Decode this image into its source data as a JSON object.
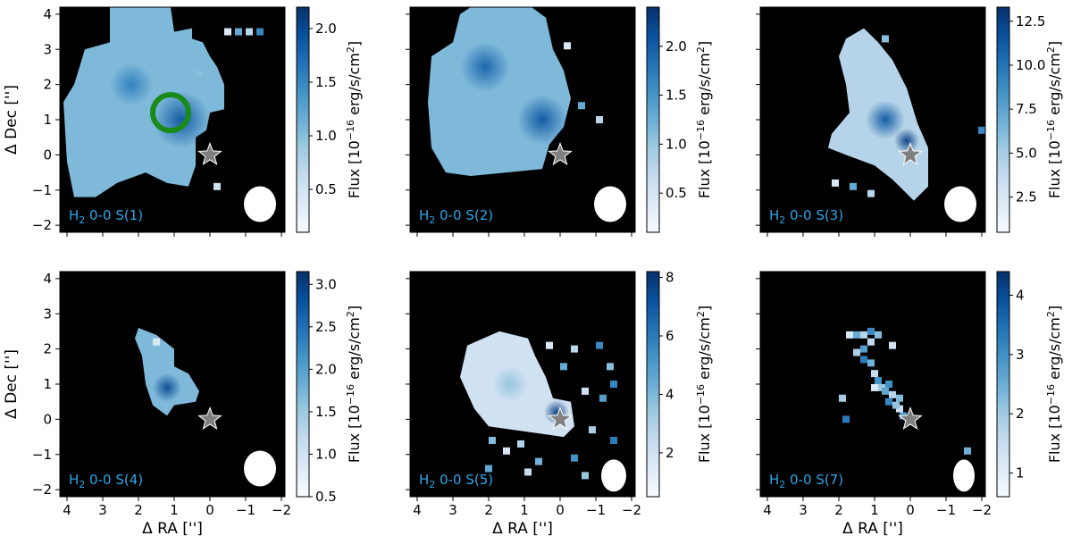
{
  "figure": {
    "colormap": [
      "#f7fbff",
      "#deebf7",
      "#c6dbef",
      "#9ecae1",
      "#6baed6",
      "#4292c6",
      "#2171b5",
      "#08519c",
      "#08306b"
    ],
    "background_color": "#000000",
    "star_color": "#808080",
    "beam_color": "#ffffff",
    "ring_color": "#1a8a1a",
    "label_color": "#2aa7e8",
    "x_axis_label": "Δ RA ['']",
    "y_axis_label": "Δ Dec ['']",
    "x_ticks": [
      4,
      3,
      2,
      1,
      0,
      -1,
      -2
    ],
    "y_ticks": [
      -2,
      -1,
      0,
      1,
      2,
      3,
      4
    ],
    "cbar_label_prefix": "Flux [10",
    "cbar_label_exponent": "−16",
    "cbar_label_middle": " erg/s/cm",
    "cbar_label_square": "2",
    "cbar_label_suffix": "]"
  },
  "chart_data": [
    {
      "type": "heatmap",
      "label_species": "H",
      "label_subscript": "2",
      "label_transition": " 0-0 S(1)",
      "xlabel": "",
      "ylabel": "Δ Dec ['']",
      "xlim": [
        4.2,
        -2.1
      ],
      "ylim": [
        -2.2,
        4.2
      ],
      "show_x_tick_labels": false,
      "show_y_tick_labels": true,
      "colorbar": {
        "min": 0.1,
        "max": 2.2,
        "ticks": [
          0.5,
          1.0,
          1.5,
          2.0
        ],
        "tick_labels": [
          "0.5",
          "1.0",
          "1.5",
          "2.0"
        ]
      },
      "star": [
        0,
        0
      ],
      "beam": {
        "center": [
          -1.4,
          -1.4
        ],
        "size": [
          0.9,
          1.0
        ]
      },
      "ring": {
        "center": [
          1.1,
          1.2
        ],
        "radius": 0.5
      },
      "emission_regions": [
        {
          "outline": [
            [
              2.8,
              4.2
            ],
            [
              1.1,
              4.2
            ],
            [
              1.0,
              3.5
            ],
            [
              0.5,
              3.6
            ],
            [
              0.5,
              3.3
            ],
            [
              0.2,
              3.2
            ],
            [
              0.0,
              2.8
            ],
            [
              -0.2,
              2.5
            ],
            [
              -0.4,
              2.0
            ],
            [
              -0.4,
              1.3
            ],
            [
              0.0,
              1.2
            ],
            [
              0.1,
              0.7
            ],
            [
              0.4,
              0.5
            ],
            [
              0.4,
              -0.3
            ],
            [
              0.6,
              -0.9
            ],
            [
              1.2,
              -0.8
            ],
            [
              1.8,
              -0.5
            ],
            [
              2.6,
              -0.8
            ],
            [
              3.2,
              -1.2
            ],
            [
              3.8,
              -1.2
            ],
            [
              4.0,
              -0.2
            ],
            [
              4.1,
              1.5
            ],
            [
              3.8,
              2.0
            ],
            [
              3.5,
              3.0
            ],
            [
              2.8,
              3.2
            ]
          ],
          "level": 0.45
        }
      ],
      "bright_spots": [
        {
          "center": [
            0.8,
            1.0
          ],
          "radius": 0.8,
          "level": 0.85
        },
        {
          "center": [
            2.2,
            2.0
          ],
          "radius": 0.6,
          "level": 0.7
        }
      ],
      "emission_pixels": [
        [
          -0.5,
          3.5
        ],
        [
          -0.8,
          3.5
        ],
        [
          -1.1,
          3.5
        ],
        [
          -1.4,
          3.5
        ],
        [
          0.3,
          2.3
        ],
        [
          -0.2,
          -0.9
        ]
      ]
    },
    {
      "type": "heatmap",
      "label_species": "H",
      "label_subscript": "2",
      "label_transition": " 0-0 S(2)",
      "xlabel": "",
      "ylabel": "",
      "xlim": [
        4.2,
        -2.1
      ],
      "ylim": [
        -2.2,
        4.2
      ],
      "show_x_tick_labels": false,
      "show_y_tick_labels": false,
      "colorbar": {
        "min": 0.1,
        "max": 2.4,
        "ticks": [
          0.5,
          1.0,
          1.5,
          2.0
        ],
        "tick_labels": [
          "0.5",
          "1.0",
          "1.5",
          "2.0"
        ]
      },
      "star": [
        0,
        0
      ],
      "beam": {
        "center": [
          -1.4,
          -1.4
        ],
        "size": [
          0.9,
          1.0
        ]
      },
      "emission_regions": [
        {
          "outline": [
            [
              2.5,
              4.2
            ],
            [
              0.8,
              4.2
            ],
            [
              0.4,
              3.9
            ],
            [
              0.2,
              3.0
            ],
            [
              -0.1,
              2.4
            ],
            [
              -0.3,
              1.6
            ],
            [
              -0.1,
              0.8
            ],
            [
              0.3,
              0.3
            ],
            [
              0.5,
              -0.4
            ],
            [
              1.5,
              -0.5
            ],
            [
              2.5,
              -0.6
            ],
            [
              3.2,
              -0.5
            ],
            [
              3.6,
              0.2
            ],
            [
              3.7,
              1.5
            ],
            [
              3.6,
              2.8
            ],
            [
              3.0,
              3.2
            ],
            [
              2.8,
              4.0
            ]
          ],
          "level": 0.45
        }
      ],
      "bright_spots": [
        {
          "center": [
            2.1,
            2.5
          ],
          "radius": 0.7,
          "level": 0.8
        },
        {
          "center": [
            0.5,
            1.0
          ],
          "radius": 0.7,
          "level": 0.85
        }
      ],
      "emission_pixels": [
        [
          -0.2,
          3.1
        ],
        [
          -0.6,
          1.4
        ],
        [
          -1.1,
          1.0
        ]
      ]
    },
    {
      "type": "heatmap",
      "label_species": "H",
      "label_subscript": "2",
      "label_transition": " 0-0 S(3)",
      "xlabel": "",
      "ylabel": "",
      "xlim": [
        4.2,
        -2.1
      ],
      "ylim": [
        -2.2,
        4.2
      ],
      "show_x_tick_labels": false,
      "show_y_tick_labels": false,
      "colorbar": {
        "min": 0.5,
        "max": 13.3,
        "ticks": [
          2.5,
          5.0,
          7.5,
          10.0,
          12.5
        ],
        "tick_labels": [
          "2.5",
          "5.0",
          "7.5",
          "10.0",
          "12.5"
        ]
      },
      "star": [
        0,
        0
      ],
      "beam": {
        "center": [
          -1.4,
          -1.4
        ],
        "size": [
          0.9,
          1.0
        ]
      },
      "emission_regions": [
        {
          "outline": [
            [
              1.3,
              3.6
            ],
            [
              0.9,
              3.2
            ],
            [
              0.5,
              2.7
            ],
            [
              0.1,
              1.9
            ],
            [
              -0.2,
              0.9
            ],
            [
              -0.5,
              0.2
            ],
            [
              -0.5,
              -0.9
            ],
            [
              -0.1,
              -1.3
            ],
            [
              0.5,
              -0.7
            ],
            [
              1.0,
              -0.3
            ],
            [
              1.8,
              0.0
            ],
            [
              2.3,
              0.2
            ],
            [
              2.2,
              0.6
            ],
            [
              1.7,
              1.2
            ],
            [
              1.8,
              2.0
            ],
            [
              2.0,
              2.8
            ],
            [
              1.8,
              3.3
            ]
          ],
          "level": 0.3
        }
      ],
      "bright_spots": [
        {
          "center": [
            0.7,
            1.0
          ],
          "radius": 0.55,
          "level": 0.85
        },
        {
          "center": [
            0.1,
            0.4
          ],
          "radius": 0.35,
          "level": 0.95
        }
      ],
      "emission_pixels": [
        [
          2.1,
          -0.8
        ],
        [
          1.6,
          -0.9
        ],
        [
          1.1,
          -1.1
        ],
        [
          -2.0,
          0.7
        ],
        [
          0.7,
          3.3
        ]
      ]
    },
    {
      "type": "heatmap",
      "label_species": "H",
      "label_subscript": "2",
      "label_transition": " 0-0 S(4)",
      "xlabel": "Δ RA ['']",
      "ylabel": "Δ Dec ['']",
      "xlim": [
        4.2,
        -2.1
      ],
      "ylim": [
        -2.2,
        4.2
      ],
      "show_x_tick_labels": true,
      "show_y_tick_labels": true,
      "colorbar": {
        "min": 0.5,
        "max": 3.15,
        "ticks": [
          0.5,
          1.0,
          1.5,
          2.0,
          2.5,
          3.0
        ],
        "tick_labels": [
          "0.5",
          "1.0",
          "1.5",
          "2.0",
          "2.5",
          "3.0"
        ]
      },
      "star": [
        0,
        0
      ],
      "beam": {
        "center": [
          -1.4,
          -1.4
        ],
        "size": [
          0.9,
          1.0
        ]
      },
      "emission_regions": [
        {
          "outline": [
            [
              2.0,
              2.6
            ],
            [
              1.5,
              2.4
            ],
            [
              1.0,
              2.0
            ],
            [
              1.0,
              1.5
            ],
            [
              0.6,
              1.3
            ],
            [
              0.3,
              0.8
            ],
            [
              0.4,
              0.5
            ],
            [
              1.0,
              0.4
            ],
            [
              1.2,
              0.1
            ],
            [
              1.6,
              0.4
            ],
            [
              1.8,
              1.0
            ],
            [
              1.9,
              1.8
            ],
            [
              2.1,
              2.3
            ]
          ],
          "level": 0.45
        }
      ],
      "bright_spots": [
        {
          "center": [
            1.2,
            0.9
          ],
          "radius": 0.4,
          "level": 0.9
        }
      ],
      "emission_pixels": [
        [
          1.5,
          2.2
        ]
      ]
    },
    {
      "type": "heatmap",
      "label_species": "H",
      "label_subscript": "2",
      "label_transition": " 0-0 S(5)",
      "xlabel": "Δ RA ['']",
      "ylabel": "",
      "xlim": [
        4.2,
        -2.1
      ],
      "ylim": [
        -2.2,
        4.2
      ],
      "show_x_tick_labels": true,
      "show_y_tick_labels": false,
      "colorbar": {
        "min": 0.5,
        "max": 8.2,
        "ticks": [
          2,
          4,
          6,
          8
        ],
        "tick_labels": [
          "2",
          "4",
          "6",
          "8"
        ]
      },
      "star": [
        0,
        0
      ],
      "beam": {
        "center": [
          -1.5,
          -1.6
        ],
        "size": [
          0.7,
          0.9
        ]
      },
      "emission_regions": [
        {
          "outline": [
            [
              1.7,
              2.5
            ],
            [
              0.9,
              2.3
            ],
            [
              0.7,
              1.8
            ],
            [
              0.4,
              1.2
            ],
            [
              0.2,
              0.6
            ],
            [
              -0.3,
              0.5
            ],
            [
              -0.4,
              -0.2
            ],
            [
              -0.1,
              -0.5
            ],
            [
              0.6,
              -0.4
            ],
            [
              1.3,
              -0.3
            ],
            [
              2.0,
              -0.2
            ],
            [
              2.4,
              0.3
            ],
            [
              2.8,
              1.2
            ],
            [
              2.6,
              2.1
            ]
          ],
          "level": 0.2
        }
      ],
      "bright_spots": [
        {
          "center": [
            0.1,
            0.2
          ],
          "radius": 0.35,
          "level": 0.95
        },
        {
          "center": [
            1.4,
            1.0
          ],
          "radius": 0.5,
          "level": 0.4
        }
      ],
      "emission_pixels": [
        [
          0.3,
          2.1
        ],
        [
          -0.1,
          1.5
        ],
        [
          -0.4,
          2.0
        ],
        [
          -1.1,
          2.1
        ],
        [
          -1.4,
          1.5
        ],
        [
          -0.7,
          0.8
        ],
        [
          -1.2,
          0.6
        ],
        [
          -0.9,
          -0.3
        ],
        [
          -1.5,
          -0.6
        ],
        [
          0.6,
          -1.2
        ],
        [
          0.9,
          -1.5
        ],
        [
          -0.4,
          -1.1
        ],
        [
          -0.7,
          -1.6
        ],
        [
          1.5,
          -0.9
        ],
        [
          2.0,
          -1.4
        ],
        [
          1.1,
          -0.7
        ],
        [
          -1.5,
          1.0
        ],
        [
          1.9,
          -0.6
        ]
      ]
    },
    {
      "type": "heatmap",
      "label_species": "H",
      "label_subscript": "2",
      "label_transition": " 0-0 S(7)",
      "xlabel": "Δ RA ['']",
      "ylabel": "",
      "xlim": [
        4.2,
        -2.1
      ],
      "ylim": [
        -2.2,
        4.2
      ],
      "show_x_tick_labels": true,
      "show_y_tick_labels": false,
      "colorbar": {
        "min": 0.6,
        "max": 4.4,
        "ticks": [
          1,
          2,
          3,
          4
        ],
        "tick_labels": [
          "1",
          "2",
          "3",
          "4"
        ]
      },
      "star": [
        0,
        0
      ],
      "beam": {
        "center": [
          -1.5,
          -1.6
        ],
        "size": [
          0.6,
          0.9
        ]
      },
      "emission_regions": [],
      "bright_spots": [],
      "emission_pixels": [
        [
          1.7,
          2.4
        ],
        [
          1.5,
          2.4
        ],
        [
          1.3,
          2.4
        ],
        [
          1.1,
          2.5
        ],
        [
          0.9,
          2.4
        ],
        [
          0.5,
          2.1
        ],
        [
          1.3,
          2.0
        ],
        [
          1.5,
          1.9
        ],
        [
          1.3,
          1.7
        ],
        [
          1.1,
          1.6
        ],
        [
          1.0,
          1.3
        ],
        [
          0.9,
          1.1
        ],
        [
          0.8,
          0.9
        ],
        [
          1.0,
          0.9
        ],
        [
          0.7,
          0.8
        ],
        [
          0.5,
          0.7
        ],
        [
          0.6,
          0.5
        ],
        [
          0.3,
          0.6
        ],
        [
          0.3,
          0.3
        ],
        [
          0.2,
          0.1
        ],
        [
          1.9,
          0.6
        ],
        [
          1.8,
          0.0
        ],
        [
          -1.6,
          -0.9
        ],
        [
          1.1,
          2.2
        ],
        [
          0.6,
          1.0
        ],
        [
          0.4,
          0.4
        ]
      ]
    }
  ]
}
